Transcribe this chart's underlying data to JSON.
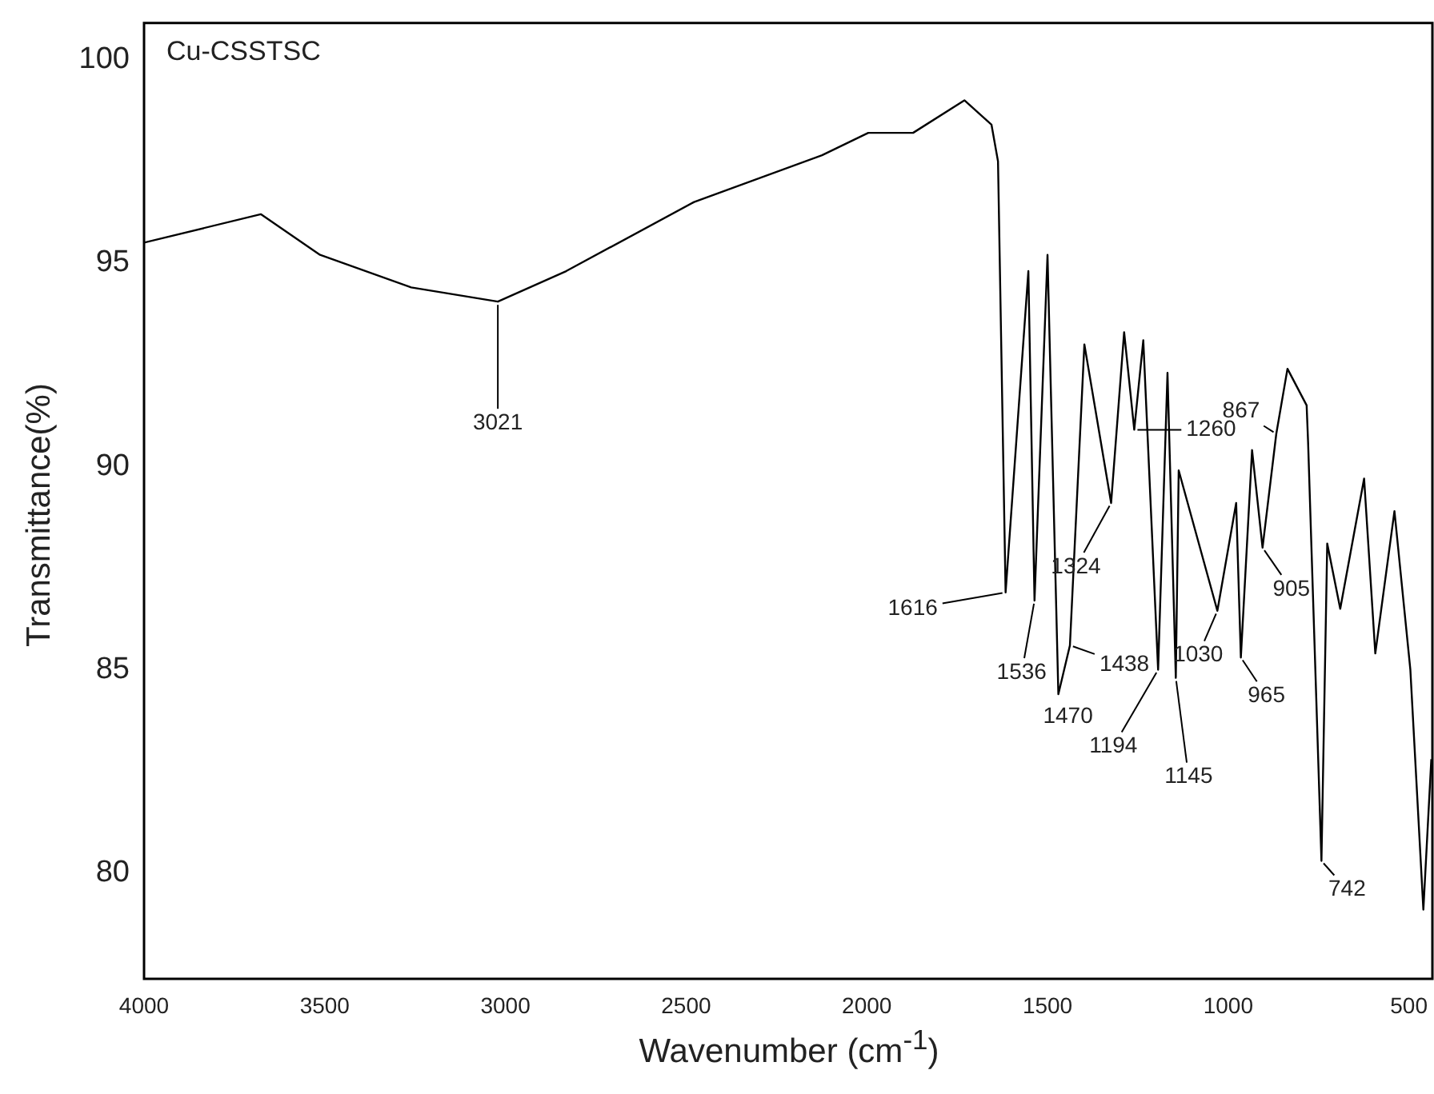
{
  "chart_data": {
    "type": "line",
    "xlabel": "Wavenumber (cm$^{-1}$)",
    "ylabel": "Transmittance(%)",
    "xlim": [
      4000,
      435
    ],
    "ylim": [
      77.4,
      100.9
    ],
    "xticks": [
      4000,
      3500,
      3000,
      2500,
      2000,
      1500,
      1000,
      500
    ],
    "yticks": [
      80,
      85,
      90,
      95,
      100
    ],
    "grid": false,
    "legend": false,
    "series": [
      {
        "color": "#000000",
        "x": [
          4000,
          3677,
          3513,
          3261,
          3021,
          2832,
          2478,
          2124,
          1996,
          1872,
          1730,
          1655,
          1637,
          1616,
          1553,
          1536,
          1500,
          1470,
          1438,
          1398,
          1324,
          1288,
          1260,
          1235,
          1194,
          1168,
          1145,
          1137,
          1030,
          978,
          965,
          934,
          905,
          867,
          836,
          783,
          779,
          742,
          726,
          690,
          624,
          593,
          540,
          496,
          460,
          438
        ],
        "values": [
          95.5,
          96.2,
          95.2,
          94.4,
          94.05,
          94.8,
          96.5,
          97.65,
          98.2,
          98.2,
          99.0,
          98.4,
          97.5,
          86.9,
          94.8,
          86.7,
          95.2,
          84.4,
          85.6,
          93.0,
          89.1,
          93.3,
          90.9,
          93.1,
          85.0,
          92.3,
          84.8,
          89.9,
          86.45,
          89.1,
          85.3,
          90.4,
          88.0,
          90.8,
          92.4,
          91.5,
          90.6,
          80.3,
          88.1,
          86.5,
          89.7,
          85.4,
          88.9,
          85.0,
          79.1,
          82.8
        ]
      }
    ],
    "annotations": [
      "Cu-CSSTSC",
      {
        "text": "3021",
        "x": 3021,
        "y": 94.05
      },
      {
        "text": "1260",
        "x": 1260,
        "y": 90.9
      },
      {
        "text": "1616",
        "x": 1616,
        "y": 86.9
      },
      {
        "text": "1536",
        "x": 1536,
        "y": 86.7
      },
      {
        "text": "1470",
        "x": 1470,
        "y": 84.4
      },
      {
        "text": "1438",
        "x": 1438,
        "y": 85.6
      },
      {
        "text": "1324",
        "x": 1324,
        "y": 89.1
      },
      {
        "text": "1194",
        "x": 1194,
        "y": 85.0
      },
      {
        "text": "1145",
        "x": 1145,
        "y": 84.8
      },
      {
        "text": "1030",
        "x": 1030,
        "y": 86.45
      },
      {
        "text": "965",
        "x": 965,
        "y": 85.3
      },
      {
        "text": "905",
        "x": 905,
        "y": 88.0
      },
      {
        "text": "867",
        "x": 867,
        "y": 90.8
      },
      {
        "text": "742",
        "x": 742,
        "y": 80.3
      }
    ]
  }
}
